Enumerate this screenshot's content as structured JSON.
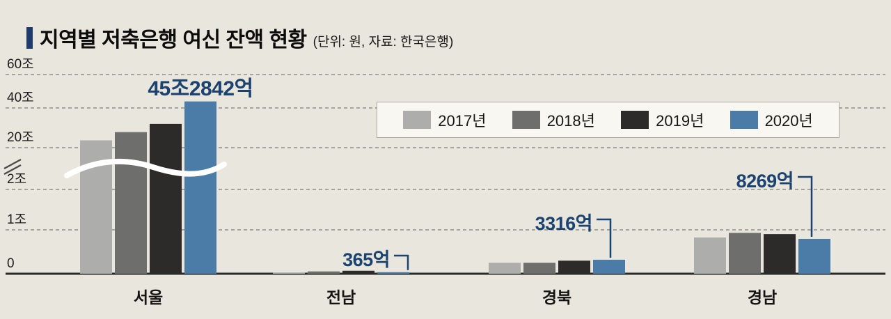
{
  "header": {
    "title": "지역별 저축은행 여신 잔액 현황",
    "subtitle": "(단위: 원, 자료: 한국은행)"
  },
  "colors": {
    "background": "#e9e6dd",
    "title_marker": "#1f3b6d",
    "annotation_text": "#1c4370",
    "gridline": "#8f8d86",
    "baseline": "#2a2a28",
    "legend_background": "#f8f7f2",
    "legend_border": "#a9a79f",
    "break_wave": "#ffffff"
  },
  "chart_data": {
    "type": "bar",
    "title": "지역별 저축은행 여신 잔액 현황",
    "unit_note": "(단위: 원, 자료: 한국은행)",
    "grid": "dashed-horizontal",
    "categories": [
      {
        "key": "seoul",
        "label": "서울"
      },
      {
        "key": "jeonnam",
        "label": "전남"
      },
      {
        "key": "gyeongbuk",
        "label": "경북"
      },
      {
        "key": "gyeongnam",
        "label": "경남"
      }
    ],
    "series": [
      {
        "name": "2017년",
        "color": "#adadab",
        "values_eokwon": [
          240000,
          300,
          2600,
          8600
        ]
      },
      {
        "name": "2018년",
        "color": "#6e6e6c",
        "values_eokwon": [
          285000,
          550,
          2600,
          9700
        ]
      },
      {
        "name": "2019년",
        "color": "#2c2b29",
        "values_eokwon": [
          330000,
          700,
          3100,
          9400
        ]
      },
      {
        "name": "2020년",
        "color": "#4b7ba7",
        "values_eokwon": [
          452842,
          365,
          3316,
          8269
        ]
      }
    ],
    "annotations": [
      {
        "category": "서울",
        "series": "2020년",
        "label": "45조2842억"
      },
      {
        "category": "전남",
        "series": "2020년",
        "label": "365억"
      },
      {
        "category": "경북",
        "series": "2020년",
        "label": "3316억"
      },
      {
        "category": "경남",
        "series": "2020년",
        "label": "8269억"
      }
    ],
    "y_axis": {
      "ticks": [
        {
          "label": "60조",
          "value_eokwon": 600000
        },
        {
          "label": "40조",
          "value_eokwon": 400000
        },
        {
          "label": "20조",
          "value_eokwon": 200000
        },
        {
          "label": "2조",
          "value_eokwon": 20000
        },
        {
          "label": "1조",
          "value_eokwon": 10000
        },
        {
          "label": "0",
          "value_eokwon": 0
        }
      ],
      "broken_axis": true,
      "break_between": [
        "2조",
        "20조"
      ]
    },
    "legend": {
      "position": "top-right",
      "items": [
        "2017년",
        "2018년",
        "2019년",
        "2020년"
      ]
    }
  }
}
